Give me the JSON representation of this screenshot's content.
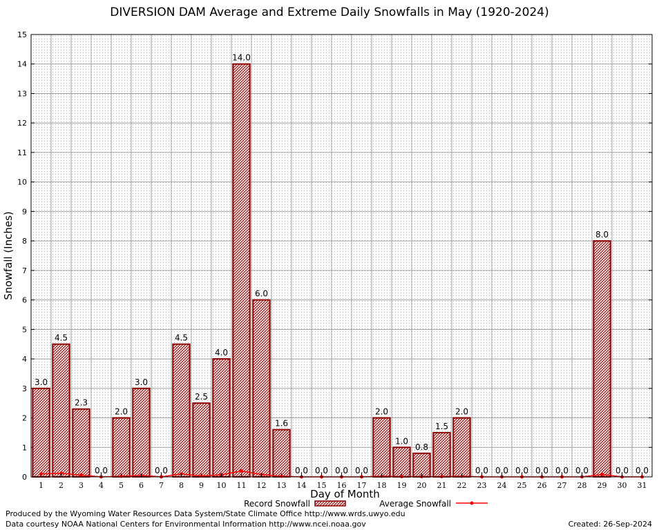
{
  "chart_data": {
    "type": "bar",
    "title": "DIVERSION DAM Average and Extreme Daily Snowfalls in May (1920-2024)",
    "xlabel": "Day of Month",
    "ylabel": "Snowfall (Inches)",
    "ylim": [
      0,
      15
    ],
    "yticks": [
      "0",
      "1",
      "2",
      "3",
      "4",
      "5",
      "6",
      "7",
      "8",
      "9",
      "10",
      "11",
      "12",
      "13",
      "14",
      "15"
    ],
    "categories": [
      "1",
      "2",
      "3",
      "4",
      "5",
      "6",
      "7",
      "8",
      "9",
      "10",
      "11",
      "12",
      "13",
      "14",
      "15",
      "16",
      "17",
      "18",
      "19",
      "20",
      "21",
      "22",
      "23",
      "24",
      "25",
      "26",
      "27",
      "28",
      "29",
      "30",
      "31"
    ],
    "grid": true,
    "legend_position": "bottom",
    "series": [
      {
        "name": "Record Snowfall",
        "kind": "bar",
        "color": "#8b0000",
        "values": [
          3.0,
          4.5,
          2.3,
          0.0,
          2.0,
          3.0,
          0.0,
          4.5,
          2.5,
          4.0,
          14.0,
          6.0,
          1.6,
          0.0,
          0.0,
          0.0,
          0.0,
          2.0,
          1.0,
          0.8,
          1.5,
          2.0,
          0.0,
          0.0,
          0.0,
          0.0,
          0.0,
          0.0,
          8.0,
          0.0,
          0.0
        ],
        "labels": [
          "3.0",
          "4.5",
          "2.3",
          "0.0",
          "2.0",
          "3.0",
          "0.0",
          "4.5",
          "2.5",
          "4.0",
          "14.0",
          "6.0",
          "1.6",
          "0.0",
          "0.0",
          "0.0",
          "0.0",
          "2.0",
          "1.0",
          "0.8",
          "1.5",
          "2.0",
          "0.0",
          "0.0",
          "0.0",
          "0.0",
          "0.0",
          "0.0",
          "8.0",
          "0.0",
          "0.0"
        ]
      },
      {
        "name": "Average Snowfall",
        "kind": "line",
        "color": "#ff0000",
        "values": [
          0.1,
          0.12,
          0.06,
          0.0,
          0.02,
          0.05,
          0.0,
          0.1,
          0.03,
          0.07,
          0.2,
          0.08,
          0.02,
          0.0,
          0.0,
          0.0,
          0.0,
          0.02,
          0.01,
          0.01,
          0.01,
          0.02,
          0.0,
          0.0,
          0.0,
          0.0,
          0.0,
          0.0,
          0.08,
          0.0,
          0.0
        ]
      }
    ]
  },
  "footer": {
    "producer": "Produced by the Wyoming Water Resources Data System/State Climate Office http://www.wrds.uwyo.edu",
    "courtesy": "Data courtesy NOAA National Centers for Environmental Information http://www.ncei.noaa.gov",
    "created": "Created:  26-Sep-2024"
  }
}
